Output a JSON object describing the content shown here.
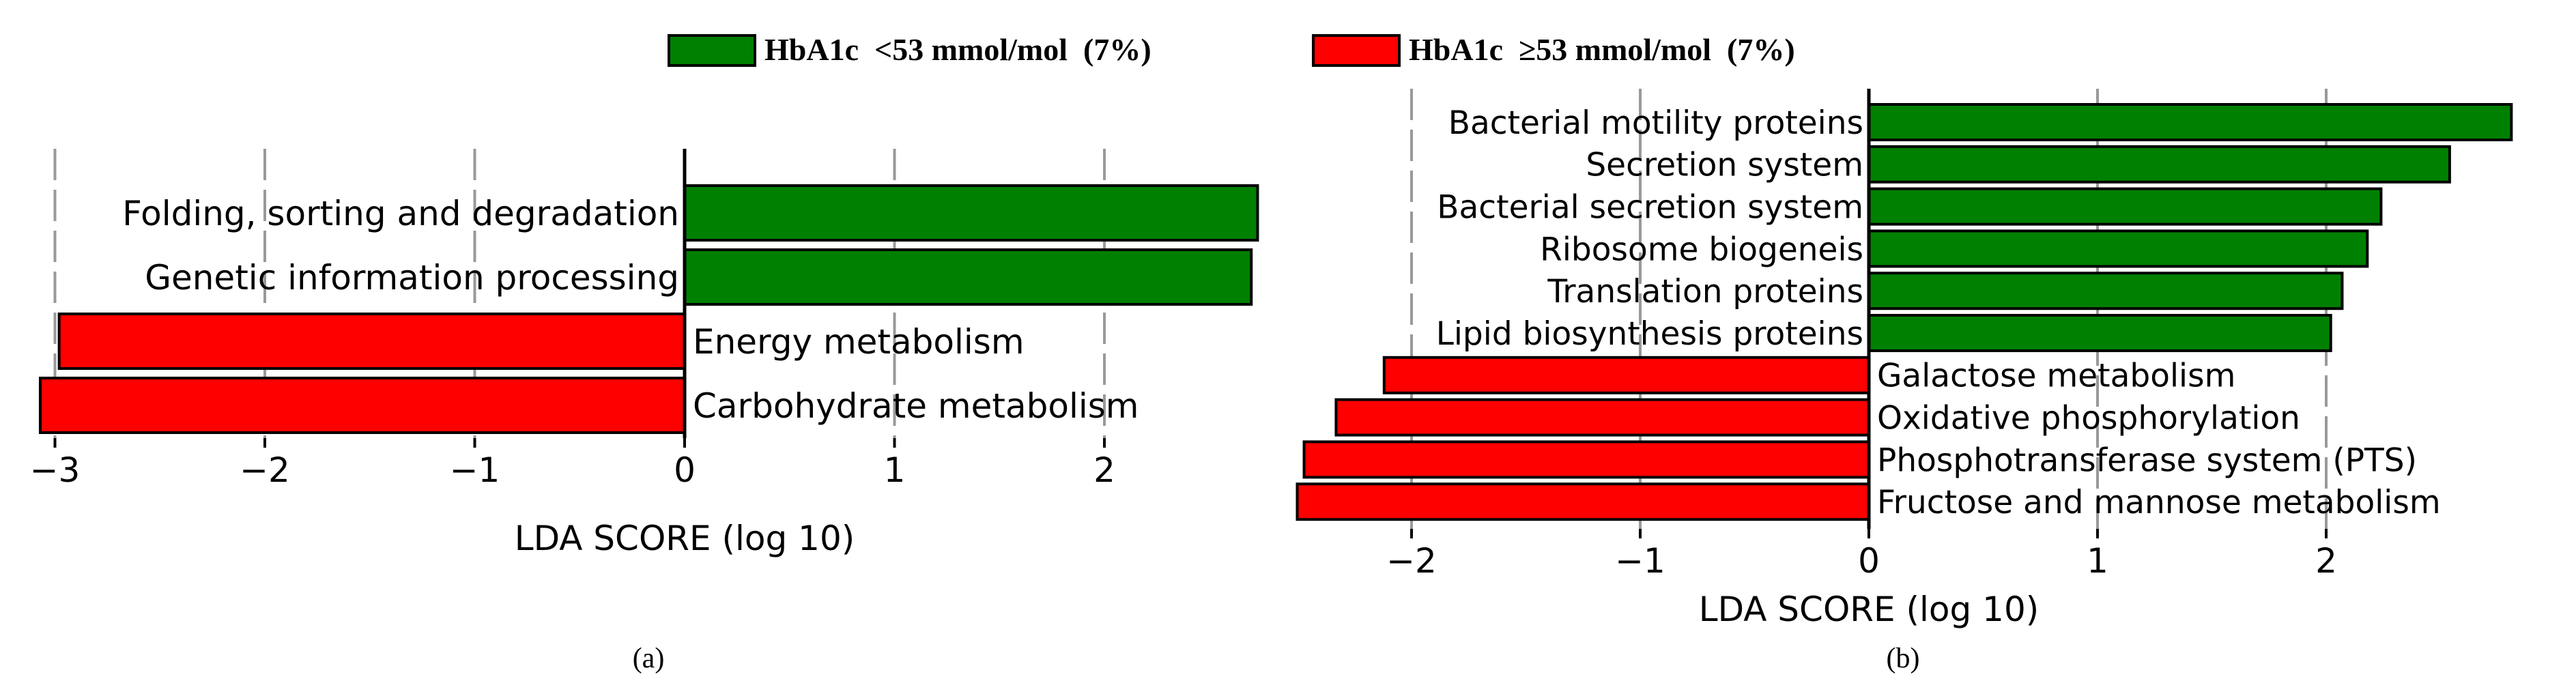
{
  "legend": {
    "items": [
      {
        "label": "HbA1c  <53 mmol/mol  (7%)",
        "color": "#008000"
      },
      {
        "label": "HbA1c  ≥53 mmol/mol  (7%)",
        "color": "#ff0000"
      }
    ]
  },
  "chart_data": [
    {
      "type": "bar",
      "orientation": "horizontal",
      "panel_label": "(a)",
      "title": "",
      "xlabel": "LDA SCORE (log 10)",
      "ylabel": "",
      "xlim": [
        -3.1,
        2.8
      ],
      "xticks": [
        -3,
        -2,
        -1,
        0,
        1,
        2
      ],
      "xtick_labels": [
        "−3",
        "−2",
        "−1",
        "0",
        "1",
        "2"
      ],
      "grid": "vertical dashed",
      "categories": [
        "Folding, sorting and degradation",
        "Genetic information processing",
        "Energy metabolism",
        "Carbohydrate metabolism"
      ],
      "values": [
        2.73,
        2.7,
        -2.98,
        -3.07
      ],
      "colors": [
        "#008000",
        "#008000",
        "#ff0000",
        "#ff0000"
      ]
    },
    {
      "type": "bar",
      "orientation": "horizontal",
      "panel_label": "(b)",
      "title": "",
      "xlabel": "LDA SCORE (log 10)",
      "ylabel": "",
      "xlim": [
        -2.6,
        2.9
      ],
      "xticks": [
        -2,
        -1,
        0,
        1,
        2
      ],
      "xtick_labels": [
        "−2",
        "−1",
        "0",
        "1",
        "2"
      ],
      "grid": "vertical dashed",
      "categories": [
        "Bacterial motility proteins",
        "Secretion system",
        "Bacterial secretion system",
        "Ribosome biogeneis",
        "Translation proteins",
        "Lipid biosynthesis proteins",
        "Galactose metabolism",
        "Oxidative phosphorylation",
        "Phosphotransferase system (PTS)",
        "Fructose and mannose metabolism"
      ],
      "values": [
        2.81,
        2.54,
        2.24,
        2.18,
        2.07,
        2.02,
        -2.12,
        -2.33,
        -2.47,
        -2.5
      ],
      "colors": [
        "#008000",
        "#008000",
        "#008000",
        "#008000",
        "#008000",
        "#008000",
        "#ff0000",
        "#ff0000",
        "#ff0000",
        "#ff0000"
      ]
    }
  ]
}
